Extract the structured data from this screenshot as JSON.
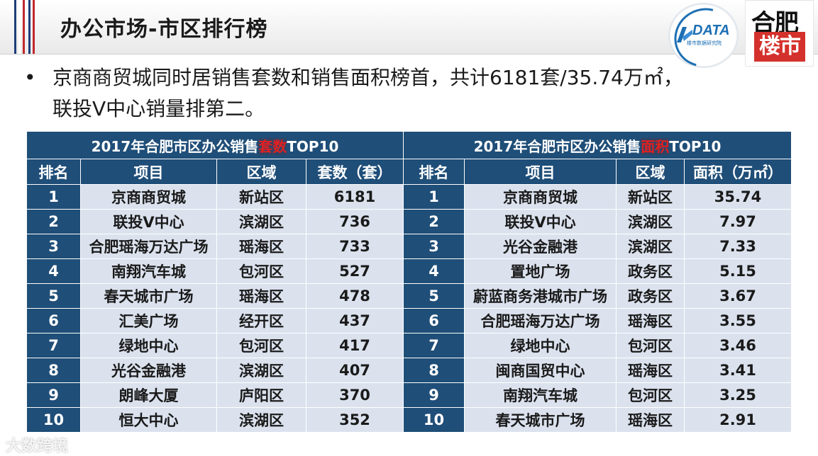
{
  "header": {
    "title": "办公市场-市区排行榜",
    "logo_data_text": "DATA",
    "logo_data_sub": "楼市数据研究院",
    "logo_hf_top": "合肥",
    "logo_hf_bottom": "楼市"
  },
  "bullet": {
    "line1": "京商商贸城同时居销售套数和销售面积榜首，共计6181套/35.74万㎡，",
    "line2": "联投V中心销量排第二。"
  },
  "left_table": {
    "title_prefix": "2017年合肥市区办公销售",
    "title_highlight": "套数",
    "title_suffix": "TOP10",
    "headers": [
      "排名",
      "项目",
      "区域",
      "套数（套）"
    ],
    "rows": [
      [
        "1",
        "京商商贸城",
        "新站区",
        "6181"
      ],
      [
        "2",
        "联投V中心",
        "滨湖区",
        "736"
      ],
      [
        "3",
        "合肥瑶海万达广场",
        "瑶海区",
        "733"
      ],
      [
        "4",
        "南翔汽车城",
        "包河区",
        "527"
      ],
      [
        "5",
        "春天城市广场",
        "瑶海区",
        "478"
      ],
      [
        "6",
        "汇美广场",
        "经开区",
        "437"
      ],
      [
        "7",
        "绿地中心",
        "包河区",
        "417"
      ],
      [
        "8",
        "光谷金融港",
        "滨湖区",
        "407"
      ],
      [
        "9",
        "朗峰大厦",
        "庐阳区",
        "370"
      ],
      [
        "10",
        "恒大中心",
        "滨湖区",
        "352"
      ]
    ]
  },
  "right_table": {
    "title_prefix": "2017年合肥市区办公销售",
    "title_highlight": "面积",
    "title_suffix": "TOP10",
    "headers": [
      "排名",
      "项目",
      "区域",
      "面积（万㎡）"
    ],
    "rows": [
      [
        "1",
        "京商商贸城",
        "新站区",
        "35.74"
      ],
      [
        "2",
        "联投V中心",
        "滨湖区",
        "7.97"
      ],
      [
        "3",
        "光谷金融港",
        "滨湖区",
        "7.33"
      ],
      [
        "4",
        "置地广场",
        "政务区",
        "5.15"
      ],
      [
        "5",
        "蔚蓝商务港城市广场",
        "政务区",
        "3.67"
      ],
      [
        "6",
        "合肥瑶海万达广场",
        "瑶海区",
        "3.55"
      ],
      [
        "7",
        "绿地中心",
        "包河区",
        "3.46"
      ],
      [
        "8",
        "闽商国贸中心",
        "瑶海区",
        "3.41"
      ],
      [
        "9",
        "南翔汽车城",
        "包河区",
        "3.25"
      ],
      [
        "10",
        "春天城市广场",
        "瑶海区",
        "2.91"
      ]
    ]
  },
  "watermark": "大数跨境",
  "colors": {
    "header_blue": "#1f4e78",
    "row_light": "#dbe2ee",
    "highlight_red": "#e02020",
    "flag_red": "#c0282d",
    "flag_blue": "#1f3d7a"
  }
}
